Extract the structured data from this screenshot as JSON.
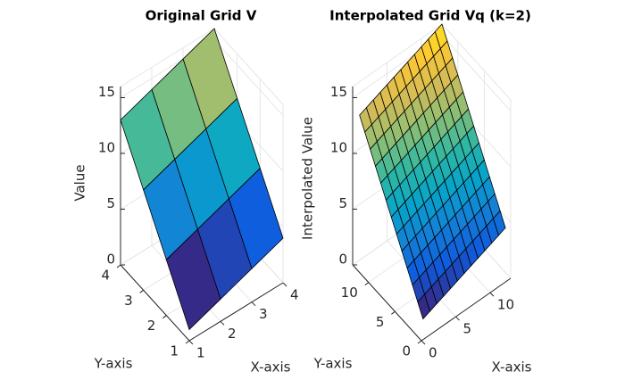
{
  "chart_data": [
    {
      "type": "surface",
      "title": "Original Grid V",
      "xlabel": "X-axis",
      "ylabel": "Y-axis",
      "zlabel": "Value",
      "colormap": "parula",
      "grid": true,
      "x": [
        1,
        2,
        3,
        4
      ],
      "y": [
        1,
        2,
        3,
        4
      ],
      "z": [
        [
          1,
          2,
          3,
          4
        ],
        [
          5,
          6,
          7,
          8
        ],
        [
          9,
          10,
          11,
          12
        ],
        [
          13,
          14,
          15,
          16
        ]
      ],
      "xlim": [
        1,
        4
      ],
      "ylim": [
        1,
        4
      ],
      "zlim": [
        0,
        16
      ],
      "xticks": [
        1,
        2,
        3,
        4
      ],
      "yticks": [
        1,
        2,
        3,
        4
      ],
      "zticks": [
        0,
        5,
        10,
        15
      ]
    },
    {
      "type": "surface",
      "title": "Interpolated Grid Vq (k=2)",
      "xlabel": "X-axis",
      "ylabel": "Y-axis",
      "zlabel": "Interpolated Value",
      "colormap": "parula",
      "grid": true,
      "x": [
        1,
        2,
        3,
        4,
        5,
        6,
        7,
        8,
        9,
        10,
        11,
        12,
        13
      ],
      "y": [
        1,
        2,
        3,
        4,
        5,
        6,
        7,
        8,
        9,
        10,
        11,
        12,
        13
      ],
      "z": [
        [
          1,
          1.25,
          1.5,
          1.75,
          2,
          2.25,
          2.5,
          2.75,
          3,
          3.25,
          3.5,
          3.75,
          4
        ],
        [
          2,
          2.25,
          2.5,
          2.75,
          3,
          3.25,
          3.5,
          3.75,
          4,
          4.25,
          4.5,
          4.75,
          5
        ],
        [
          3,
          3.25,
          3.5,
          3.75,
          4,
          4.25,
          4.5,
          4.75,
          5,
          5.25,
          5.5,
          5.75,
          6
        ],
        [
          4,
          4.25,
          4.5,
          4.75,
          5,
          5.25,
          5.5,
          5.75,
          6,
          6.25,
          6.5,
          6.75,
          7
        ],
        [
          5,
          5.25,
          5.5,
          5.75,
          6,
          6.25,
          6.5,
          6.75,
          7,
          7.25,
          7.5,
          7.75,
          8
        ],
        [
          6,
          6.25,
          6.5,
          6.75,
          7,
          7.25,
          7.5,
          7.75,
          8,
          8.25,
          8.5,
          8.75,
          9
        ],
        [
          7,
          7.25,
          7.5,
          7.75,
          8,
          8.25,
          8.5,
          8.75,
          9,
          9.25,
          9.5,
          9.75,
          10
        ],
        [
          8,
          8.25,
          8.5,
          8.75,
          9,
          9.25,
          9.5,
          9.75,
          10,
          10.25,
          10.5,
          10.75,
          11
        ],
        [
          9,
          9.25,
          9.5,
          9.75,
          10,
          10.25,
          10.5,
          10.75,
          11,
          11.25,
          11.5,
          11.75,
          12
        ],
        [
          10,
          10.25,
          10.5,
          10.75,
          11,
          11.25,
          11.5,
          11.75,
          12,
          12.25,
          12.5,
          12.75,
          13
        ],
        [
          11,
          11.25,
          11.5,
          11.75,
          12,
          12.25,
          12.5,
          12.75,
          13,
          13.25,
          13.5,
          13.75,
          14
        ],
        [
          12,
          12.25,
          12.5,
          12.75,
          13,
          13.25,
          13.5,
          13.75,
          14,
          14.25,
          14.5,
          14.75,
          15
        ],
        [
          13,
          13.25,
          13.5,
          13.75,
          14,
          14.25,
          14.5,
          14.75,
          15,
          15.25,
          15.5,
          15.75,
          16
        ]
      ],
      "xlim": [
        0,
        13
      ],
      "ylim": [
        0,
        13
      ],
      "zlim": [
        0,
        16
      ],
      "xticks": [
        0,
        5,
        10
      ],
      "yticks": [
        0,
        5,
        10
      ],
      "zticks": [
        0,
        5,
        10,
        15
      ]
    }
  ]
}
